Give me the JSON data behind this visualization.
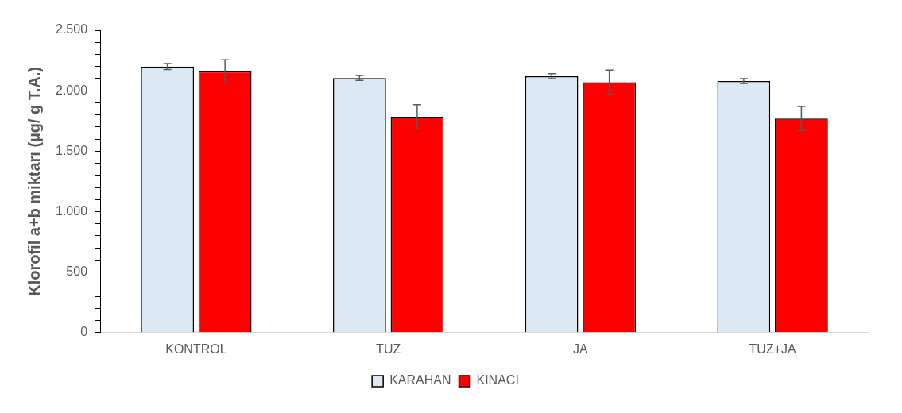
{
  "chart_data": {
    "type": "bar",
    "ylabel": "Klorofil a+b miktarı (µg/ g T.A.)",
    "categories": [
      "KONTROL",
      "TUZ",
      "JA",
      "TUZ+JA"
    ],
    "series": [
      {
        "name": "KARAHAN",
        "color": "#dde8f5",
        "values": [
          2200,
          2105,
          2120,
          2080
        ],
        "errors": [
          25,
          20,
          20,
          20
        ]
      },
      {
        "name": "KINACI",
        "color": "#ff0000",
        "values": [
          2160,
          1785,
          2070,
          1770
        ],
        "errors": [
          95,
          100,
          100,
          100
        ]
      }
    ],
    "ylim": [
      0,
      2500
    ],
    "yticks": [
      0,
      {
        "value": 100,
        "label": null
      },
      {
        "value": 200,
        "label": null
      },
      {
        "value": 300,
        "label": null
      },
      {
        "value": 400,
        "label": null
      },
      500,
      {
        "value": 600,
        "label": null
      },
      {
        "value": 700,
        "label": null
      },
      {
        "value": 800,
        "label": null
      },
      {
        "value": 900,
        "label": null
      },
      {
        "value": 1000,
        "label": "1.000"
      },
      {
        "value": 1100,
        "label": null
      },
      {
        "value": 1200,
        "label": null
      },
      {
        "value": 1300,
        "label": null
      },
      {
        "value": 1400,
        "label": null
      },
      {
        "value": 1500,
        "label": "1.500"
      },
      {
        "value": 1600,
        "label": null
      },
      {
        "value": 1700,
        "label": null
      },
      {
        "value": 1800,
        "label": null
      },
      {
        "value": 1900,
        "label": null
      },
      {
        "value": 2000,
        "label": "2.000"
      },
      {
        "value": 2100,
        "label": null
      },
      {
        "value": 2200,
        "label": null
      },
      {
        "value": 2300,
        "label": null
      },
      {
        "value": 2400,
        "label": null
      },
      {
        "value": 2500,
        "label": "2.500"
      }
    ],
    "grid": false,
    "legend": "bottom"
  }
}
